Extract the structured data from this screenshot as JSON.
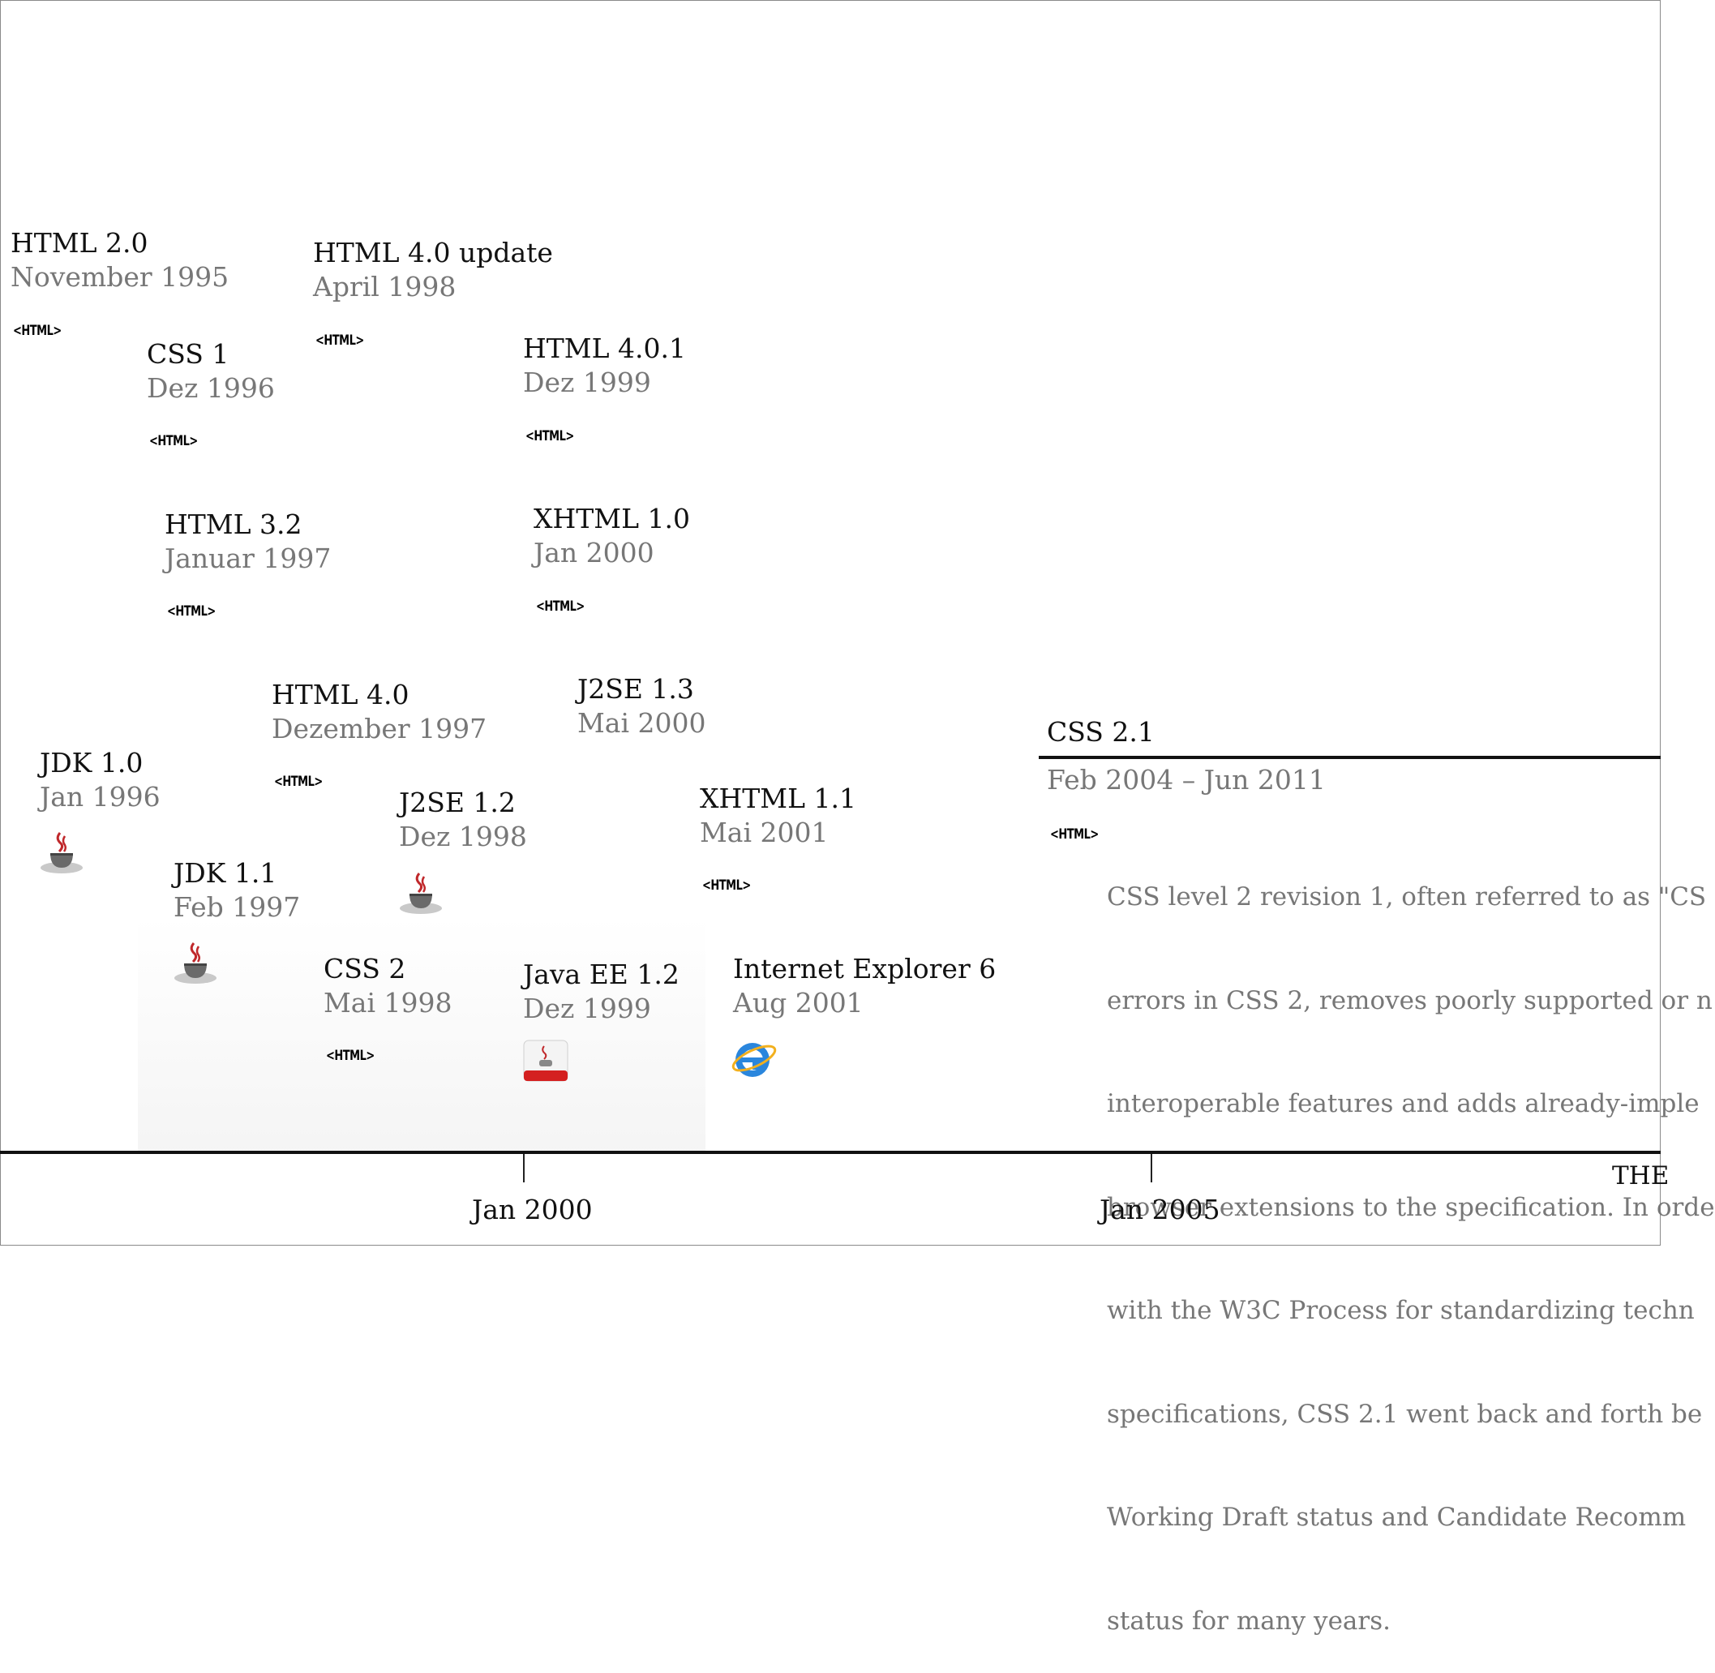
{
  "events": [
    {
      "title": "HTML 2.0",
      "date": "November 1995",
      "icon": "html-tag-icon"
    },
    {
      "title": "HTML 4.0 update",
      "date": "April 1998",
      "icon": "html-tag-icon"
    },
    {
      "title": "CSS 1",
      "date": "Dez 1996",
      "icon": "html-tag-icon"
    },
    {
      "title": "HTML 4.0.1",
      "date": "Dez 1999",
      "icon": "html-tag-icon"
    },
    {
      "title": "HTML 3.2",
      "date": "Januar 1997",
      "icon": "html-tag-icon"
    },
    {
      "title": "XHTML 1.0",
      "date": "Jan 2000",
      "icon": "html-tag-icon"
    },
    {
      "title": "HTML 4.0",
      "date": "Dezember 1997",
      "icon": "html-tag-icon"
    },
    {
      "title": "J2SE 1.3",
      "date": "Mai 2000",
      "icon": ""
    },
    {
      "title": "JDK 1.0",
      "date": "Jan 1996",
      "icon": "java-cup-icon"
    },
    {
      "title": "J2SE 1.2",
      "date": "Dez 1998",
      "icon": "java-cup-icon"
    },
    {
      "title": "XHTML 1.1",
      "date": "Mai 2001",
      "icon": "html-tag-icon"
    },
    {
      "title": "JDK 1.1",
      "date": "Feb 1997",
      "icon": "java-cup-icon"
    },
    {
      "title": "CSS 2",
      "date": "Mai 1998",
      "icon": "html-tag-icon"
    },
    {
      "title": "Java EE 1.2",
      "date": "Dez 1999",
      "icon": "java-ee-icon"
    },
    {
      "title": "Internet Explorer 6",
      "date": "Aug 2001",
      "icon": "internet-explorer-icon"
    }
  ],
  "html_icon_text": "<HTML>",
  "css21": {
    "title": "CSS 2.1",
    "date": "Feb 2004 – Jun 2011",
    "icon": "html-tag-icon",
    "description_lines": [
      "CSS level 2 revision 1, often referred to as \"CS",
      "errors in CSS 2, removes poorly supported or n",
      "interoperable features and adds already-imple",
      "browser extensions to the specification. In orde",
      "with the W3C Process for standardizing techn",
      "specifications, CSS 2.1 went back and forth be",
      "Working Draft status and Candidate Recomm",
      "status for many years."
    ]
  },
  "axis": {
    "ticks": [
      {
        "label": "Jan 2000"
      },
      {
        "label": "Jan 2005"
      }
    ],
    "corner_label": "THE"
  },
  "colors": {
    "title": "#111111",
    "date": "#777777",
    "axis": "#111111",
    "java_red": "#c0282b",
    "ie_blue": "#1f7fd6"
  }
}
